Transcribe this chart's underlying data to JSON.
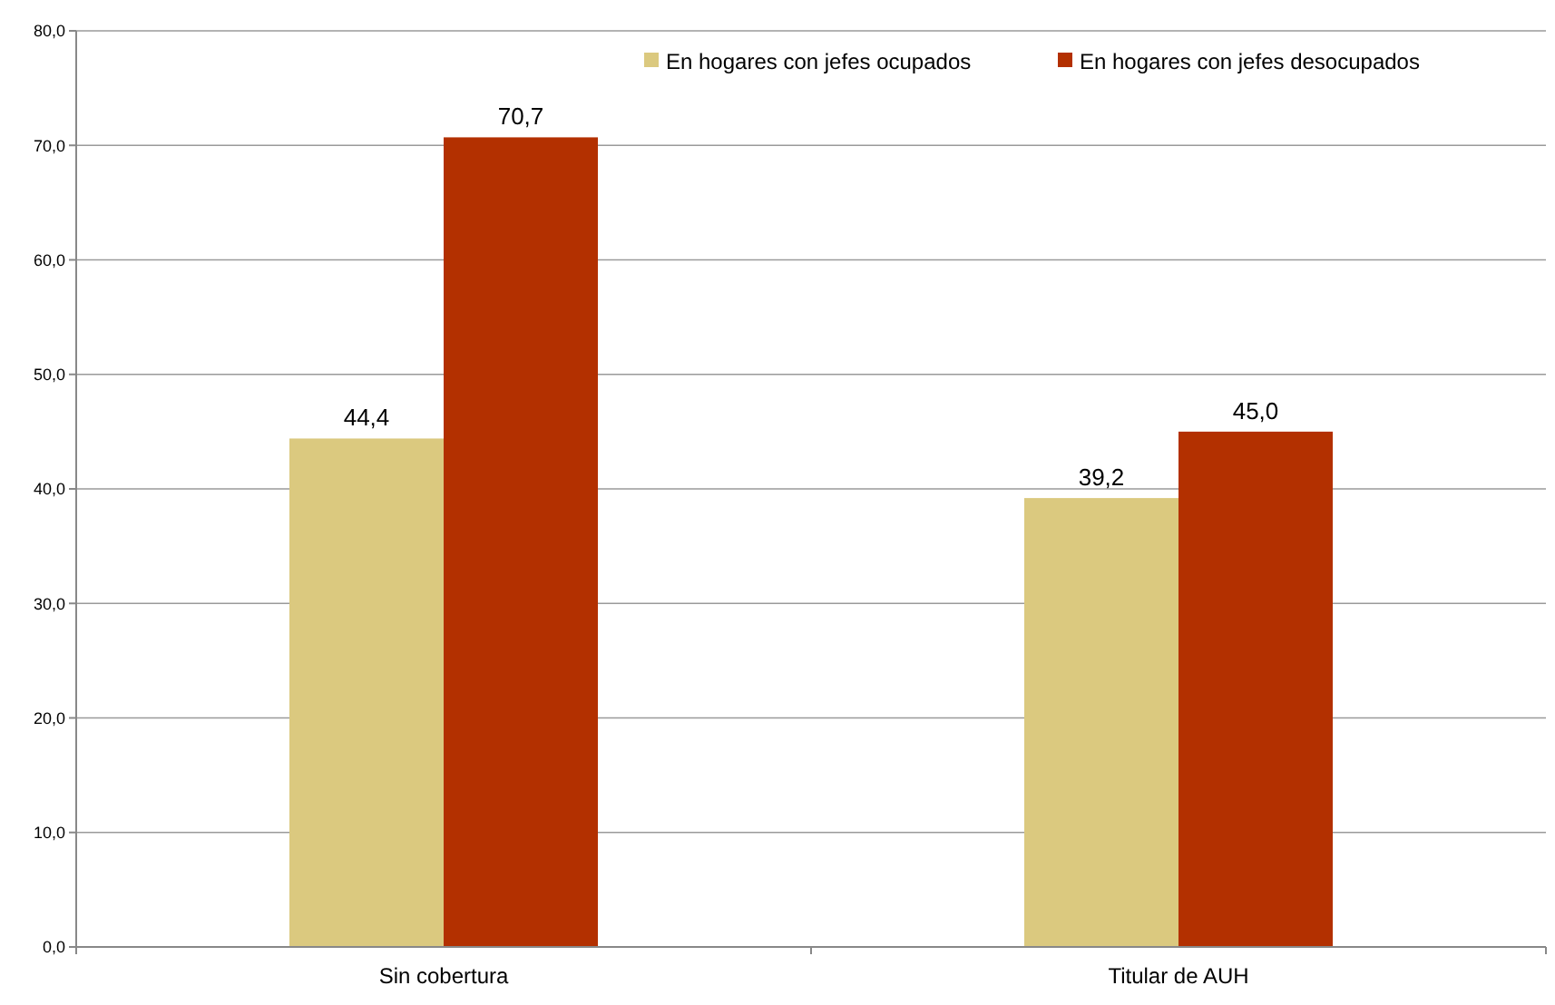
{
  "chart_data": {
    "type": "bar",
    "categories": [
      "Sin cobertura",
      "Titular de AUH"
    ],
    "series": [
      {
        "name": "En hogares con jefes ocupados",
        "color": "#dbc97f",
        "values": [
          44.4,
          39.2
        ],
        "value_labels": [
          "44,4",
          "39,2"
        ]
      },
      {
        "name": "En hogares con jefes desocupados",
        "color": "#b33000",
        "values": [
          70.7,
          45.0
        ],
        "value_labels": [
          "70,7",
          "45,0"
        ]
      }
    ],
    "ylim": [
      0,
      80
    ],
    "yticks": [
      {
        "value": 0,
        "label": "0,0"
      },
      {
        "value": 10,
        "label": "10,0"
      },
      {
        "value": 20,
        "label": "20,0"
      },
      {
        "value": 30,
        "label": "30,0"
      },
      {
        "value": 40,
        "label": "40,0"
      },
      {
        "value": 50,
        "label": "50,0"
      },
      {
        "value": 60,
        "label": "60,0"
      },
      {
        "value": 70,
        "label": "70,0"
      },
      {
        "value": 80,
        "label": "80,0"
      }
    ],
    "grid": "y",
    "legend": "top right"
  }
}
